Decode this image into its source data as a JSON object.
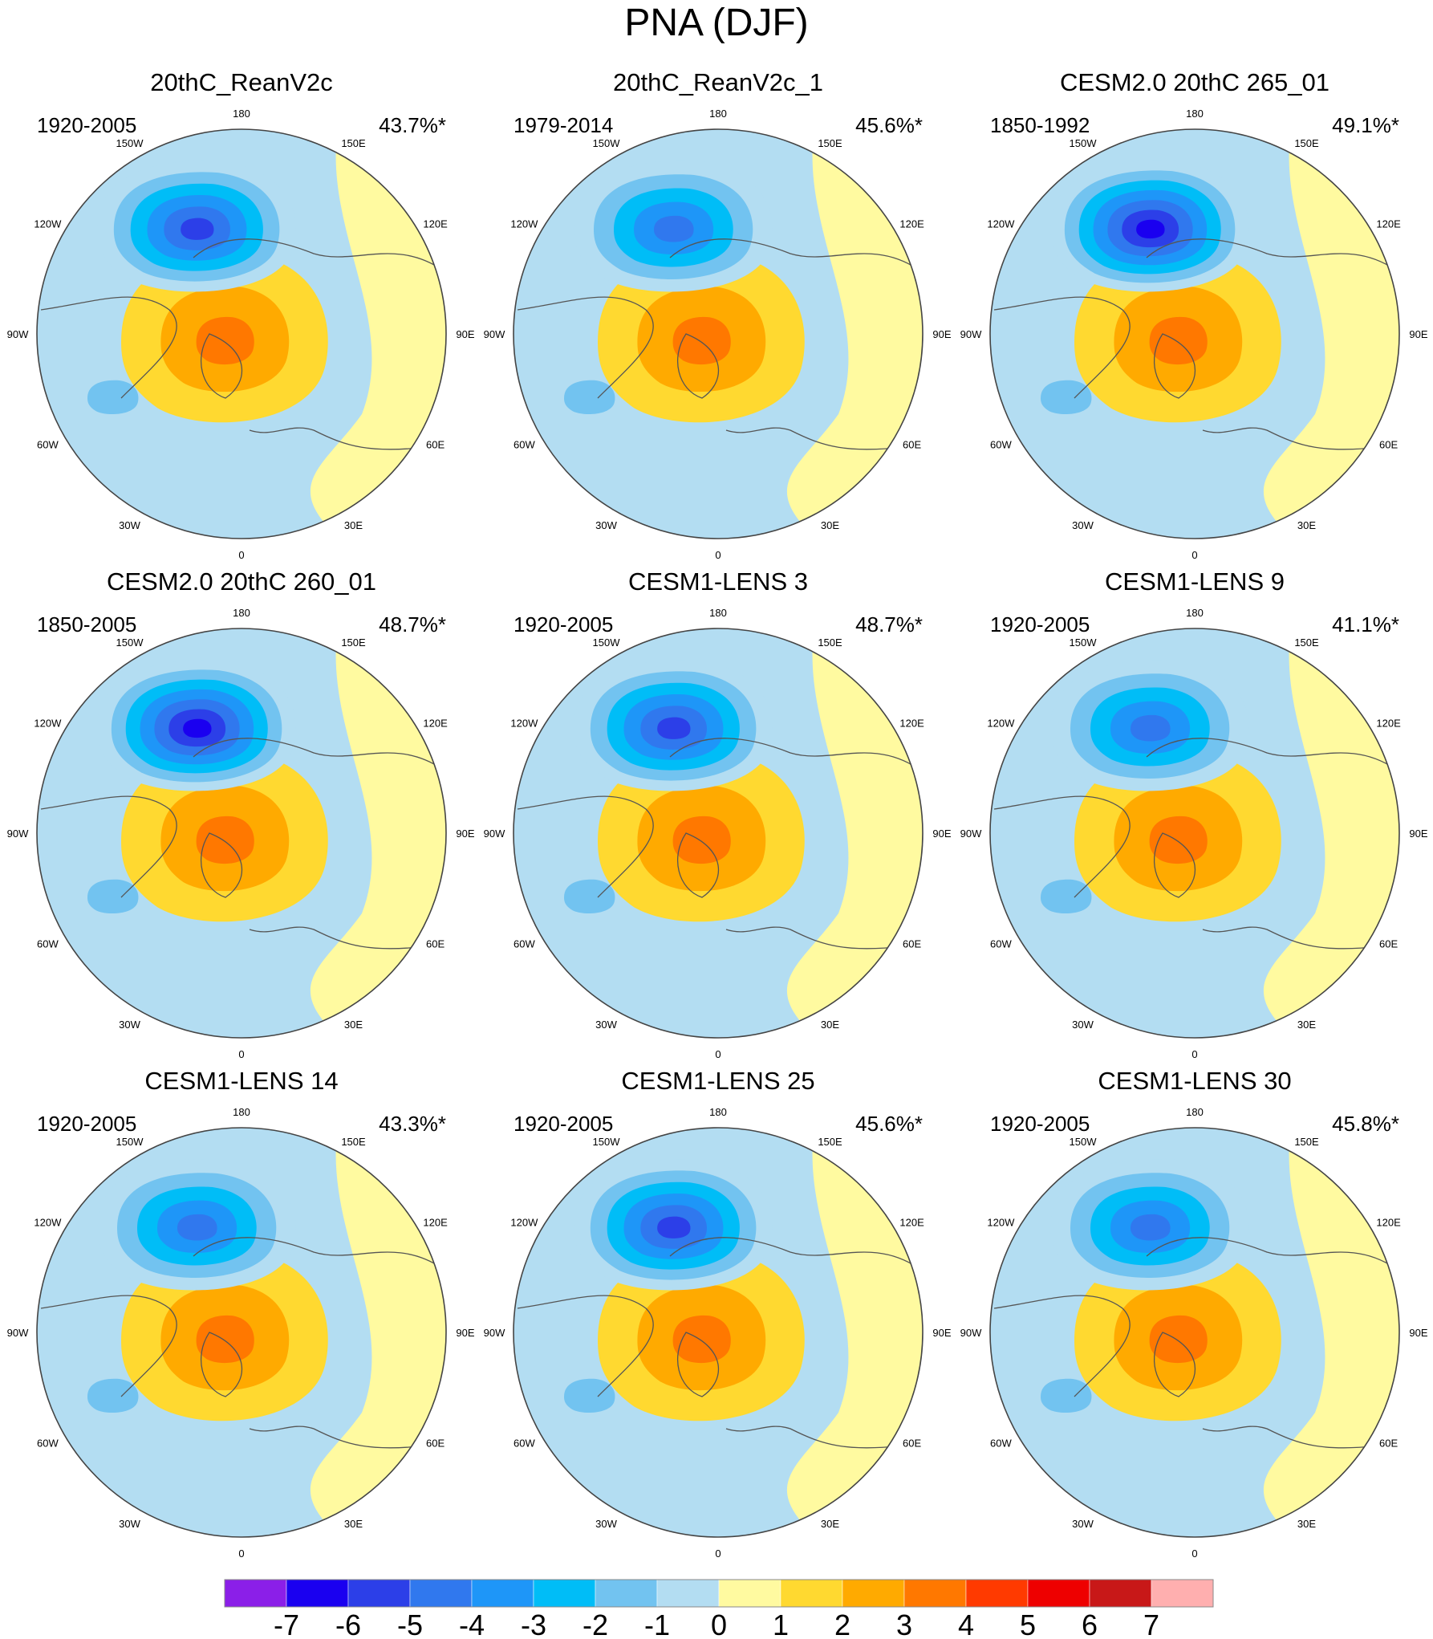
{
  "chart_data": {
    "type": "heatmap",
    "title": "PNA (DJF)",
    "projection": "north-polar-stereographic",
    "longitude_labels": [
      "180",
      "150E",
      "120E",
      "90E",
      "60E",
      "30E",
      "0",
      "30W",
      "60W",
      "90W",
      "120W",
      "150W"
    ],
    "panels": [
      {
        "title": "20thC_ReanV2c",
        "period": "1920-2005",
        "variance_explained": "43.7%*",
        "center_min": -6
      },
      {
        "title": "20thC_ReanV2c_1",
        "period": "1979-2014",
        "variance_explained": "45.6%*",
        "center_min": -5
      },
      {
        "title": "CESM2.0 20thC 265_01",
        "period": "1850-1992",
        "variance_explained": "49.1%*",
        "center_min": -7
      },
      {
        "title": "CESM2.0 20thC 260_01",
        "period": "1850-2005",
        "variance_explained": "48.7%*",
        "center_min": -7
      },
      {
        "title": "CESM1-LENS 3",
        "period": "1920-2005",
        "variance_explained": "48.7%*",
        "center_min": -6
      },
      {
        "title": "CESM1-LENS 9",
        "period": "1920-2005",
        "variance_explained": "41.1%*",
        "center_min": -5
      },
      {
        "title": "CESM1-LENS 14",
        "period": "1920-2005",
        "variance_explained": "43.3%*",
        "center_min": -5
      },
      {
        "title": "CESM1-LENS 25",
        "period": "1920-2005",
        "variance_explained": "45.6%*",
        "center_min": -6
      },
      {
        "title": "CESM1-LENS 30",
        "period": "1920-2005",
        "variance_explained": "45.8%*",
        "center_min": -5
      }
    ],
    "colorbar": {
      "levels": [
        "-7",
        "-6",
        "-5",
        "-4",
        "-3",
        "-2",
        "-1",
        "0",
        "1",
        "2",
        "3",
        "4",
        "5",
        "6",
        "7"
      ],
      "colors": [
        "#8b1fe8",
        "#1a00f0",
        "#2c3fe8",
        "#3078ee",
        "#1e96f8",
        "#00bdf7",
        "#72c3f0",
        "#b3ddf2",
        "#fffaa0",
        "#ffd930",
        "#ffaa00",
        "#ff7800",
        "#ff3a00",
        "#ee0000",
        "#c81818",
        "#ffafaf"
      ]
    }
  }
}
